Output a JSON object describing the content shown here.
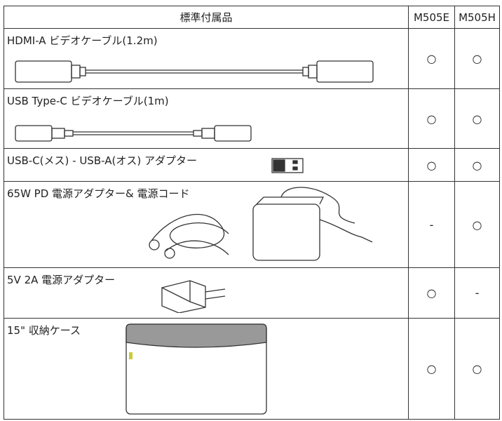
{
  "table": {
    "header": [
      "標準付属品",
      "M505E",
      "M505H"
    ],
    "rows": [
      [
        "HDMI-A ビデオケーブル(1.2m)",
        "○",
        "○"
      ],
      [
        "USB Type-C ビデオケーブル(1m)",
        "○",
        "○"
      ],
      [
        "USB-C(メス) - USB-A(オス) アダプター",
        "○",
        "○"
      ],
      [
        "65W PD 電源アダプター& 電源コード",
        "-",
        "○"
      ],
      [
        "5V 2A 電源アダプター",
        "○",
        "-"
      ],
      [
        "15\" 収納ケース",
        "○",
        "○"
      ]
    ]
  }
}
